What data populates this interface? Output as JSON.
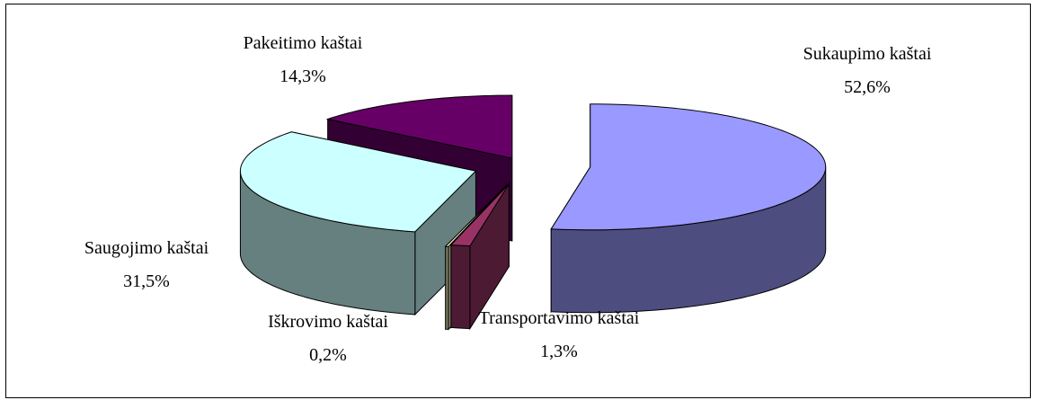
{
  "chart_data": {
    "type": "pie",
    "categories": [
      "Sukaupimo kaštai",
      "Transportavimo kaštai",
      "Iškrovimo kaštai",
      "Saugojimo kaštai",
      "Pakeitimo kaštai"
    ],
    "values": [
      52.6,
      1.3,
      0.2,
      31.5,
      14.3
    ],
    "value_labels": [
      "52,6%",
      "1,3%",
      "0,2%",
      "31,5%",
      "14,3%"
    ],
    "colors": [
      "#9999ff",
      "#993366",
      "#ffffcc",
      "#ccffff",
      "#660066"
    ]
  }
}
